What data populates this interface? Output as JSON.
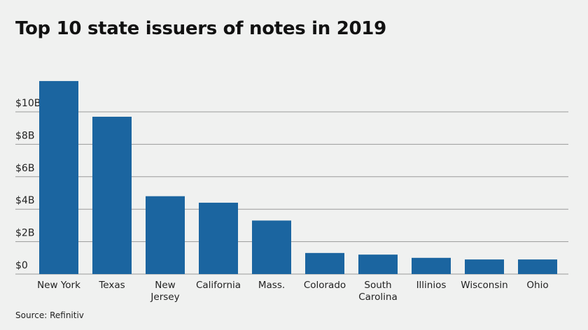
{
  "chart_data": {
    "type": "bar",
    "title": "Top 10 state issuers of notes in 2019",
    "source": "Source: Refinitiv",
    "categories": [
      "New York",
      "Texas",
      "New\nJersey",
      "California",
      "Mass.",
      "Colorado",
      "South\nCarolina",
      "Illinios",
      "Wisconsin",
      "Ohio"
    ],
    "values": [
      11.9,
      9.7,
      4.8,
      4.4,
      3.3,
      1.3,
      1.2,
      1.0,
      0.9,
      0.9
    ],
    "color": "#1b65a0",
    "ylim": [
      0,
      12
    ],
    "yticks": [
      {
        "value": 0,
        "label": "$0"
      },
      {
        "value": 2,
        "label": "$2B"
      },
      {
        "value": 4,
        "label": "$4B"
      },
      {
        "value": 6,
        "label": "$6B"
      },
      {
        "value": 8,
        "label": "$8B"
      },
      {
        "value": 10,
        "label": "$10B"
      }
    ],
    "grid": true
  }
}
